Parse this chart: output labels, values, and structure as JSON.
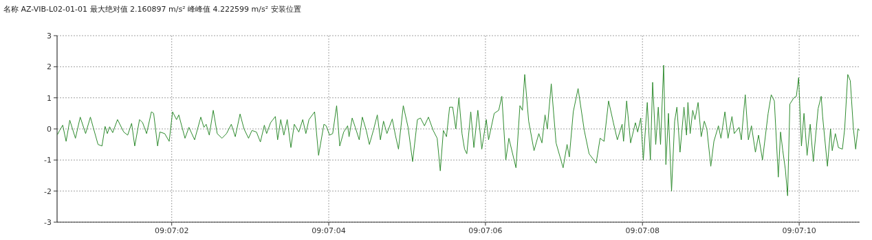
{
  "chart_data": {
    "type": "line",
    "title": "名称 AZ-VIB-L02-01-01 最大绝对值 2.160897 m/s² 峰峰值 4.222599 m/s² 安装位置",
    "x": [
      9.116817,
      9.116825,
      9.116836,
      9.116848,
      9.116861,
      9.116881,
      9.116898,
      9.116917,
      9.116934,
      9.116944,
      9.116961,
      9.116975,
      9.116986,
      9.116994,
      9.117002,
      9.117013,
      9.11703,
      9.117052,
      9.117066,
      9.11708,
      9.117091,
      9.117108,
      9.117119,
      9.117133,
      9.11715,
      9.117158,
      9.117172,
      9.11718,
      9.117197,
      9.117213,
      9.117225,
      9.117239,
      9.117247,
      9.117269,
      9.117283,
      9.117303,
      9.117325,
      9.117336,
      9.117344,
      9.117355,
      9.117369,
      9.117383,
      9.1174,
      9.117416,
      9.117433,
      9.117447,
      9.117464,
      9.117478,
      9.117494,
      9.117506,
      9.117522,
      9.117536,
      9.11755,
      9.117558,
      9.117572,
      9.117589,
      9.117597,
      9.117608,
      9.117619,
      9.117631,
      9.117644,
      9.117656,
      9.117672,
      9.117686,
      9.117697,
      9.117708,
      9.117728,
      9.117742,
      9.117761,
      9.117769,
      9.117781,
      9.117792,
      9.117806,
      9.117817,
      9.117831,
      9.117845,
      9.11785,
      9.117861,
      9.117872,
      9.117886,
      9.117897,
      9.117911,
      9.117922,
      9.117936,
      9.11795,
      9.117961,
      9.117972,
      9.117984,
      9.118003,
      9.118014,
      9.118025,
      9.118042,
      9.118059,
      9.118075,
      9.118092,
      9.118103,
      9.118117,
      9.118131,
      9.118148,
      9.118162,
      9.118173,
      9.118184,
      9.118195,
      9.118206,
      9.118217,
      9.118228,
      9.118239,
      9.11825,
      9.118259,
      9.118267,
      9.118281,
      9.118292,
      9.118306,
      9.11832,
      9.118336,
      9.118344,
      9.118364,
      9.11838,
      9.118391,
      9.118405,
      9.118416,
      9.118441,
      9.118455,
      9.118464,
      9.118472,
      9.118486,
      9.118505,
      9.118522,
      9.118533,
      9.118544,
      9.118552,
      9.118566,
      9.118583,
      9.118597,
      9.118608,
      9.118622,
      9.11863,
      9.118644,
      9.118661,
      9.118683,
      9.1187,
      9.118725,
      9.118739,
      9.118753,
      9.118769,
      9.118786,
      9.1188,
      9.118817,
      9.118822,
      9.118833,
      9.118847,
      9.118864,
      9.118872,
      9.118883,
      9.118892,
      9.118906,
      9.118917,
      9.118925,
      9.118936,
      9.118945,
      9.118953,
      9.118964,
      9.118972,
      9.118981,
      9.118992,
      9.119003,
      9.119011,
      9.119022,
      9.119036,
      9.119045,
      9.11905,
      9.119058,
      9.119067,
      9.119075,
      9.119086,
      9.119097,
      9.119108,
      9.119117,
      9.119131,
      9.119142,
      9.119158,
      9.119167,
      9.119181,
      9.119192,
      9.119206,
      9.119214,
      9.119231,
      9.119239,
      9.119253,
      9.119264,
      9.119275,
      9.119289,
      9.1193,
      9.119314,
      9.119334,
      9.119345,
      9.119356,
      9.11937,
      9.119378,
      9.119386,
      9.119395,
      9.119403,
      9.119411,
      9.119425,
      9.119434,
      9.119442,
      9.119452,
      9.119461,
      9.119472,
      9.119483,
      9.119494,
      9.119511,
      9.119522,
      9.119527,
      9.119544,
      9.119555,
      9.119561,
      9.119572,
      9.119583,
      9.119597,
      9.119605,
      9.119616,
      9.119625,
      9.119636,
      9.119644,
      9.119652,
      9.119658
    ],
    "series": [
      {
        "color": "#2e8b2e",
        "values": [
          -0.19,
          -0.05,
          0.12,
          -0.4,
          0.28,
          -0.3,
          0.38,
          -0.15,
          0.38,
          0.05,
          -0.5,
          -0.55,
          0.08,
          -0.15,
          0.07,
          -0.12,
          0.3,
          -0.1,
          -0.2,
          0.18,
          -0.55,
          0.3,
          0.2,
          -0.15,
          0.55,
          0.5,
          -0.55,
          -0.1,
          -0.15,
          -0.4,
          0.55,
          0.3,
          0.45,
          -0.3,
          0.05,
          -0.35,
          0.38,
          0.05,
          0.15,
          -0.2,
          0.6,
          -0.15,
          -0.3,
          -0.15,
          0.15,
          -0.25,
          0.48,
          0.0,
          -0.3,
          -0.05,
          -0.1,
          -0.42,
          0.12,
          -0.15,
          0.2,
          0.4,
          -0.35,
          0.3,
          -0.2,
          0.3,
          -0.6,
          0.15,
          -0.1,
          0.3,
          -0.15,
          0.3,
          0.55,
          -0.85,
          0.15,
          0.1,
          -0.2,
          -0.15,
          0.75,
          -0.55,
          -0.1,
          0.1,
          -0.25,
          0.35,
          0.05,
          -0.35,
          0.38,
          -0.05,
          -0.5,
          -0.05,
          0.45,
          -0.35,
          0.25,
          -0.15,
          0.32,
          -0.2,
          -0.65,
          0.75,
          0.05,
          -1.05,
          0.3,
          0.35,
          0.1,
          0.38,
          -0.05,
          -0.3,
          -1.35,
          -0.05,
          -0.25,
          0.7,
          0.7,
          0.0,
          1.0,
          -0.15,
          -0.65,
          -0.8,
          0.55,
          -0.6,
          0.6,
          -0.65,
          0.3,
          -0.35,
          0.5,
          0.6,
          1.05,
          -1.0,
          -0.3,
          -1.25,
          0.75,
          0.6,
          1.75,
          0.25,
          -0.7,
          -0.15,
          -0.45,
          0.45,
          0.0,
          1.45,
          -0.45,
          -0.9,
          -1.25,
          -0.5,
          -0.9,
          0.55,
          1.3,
          -0.05,
          -0.8,
          -1.1,
          -0.3,
          -0.4,
          0.9,
          0.2,
          -0.35,
          0.15,
          -0.4,
          0.9,
          -0.45,
          0.2,
          -0.1,
          0.35,
          -1.0,
          0.85,
          -1.0,
          1.5,
          -0.5,
          0.7,
          -0.5,
          2.05,
          -1.15,
          0.5,
          -2.0,
          0.25,
          0.7,
          -0.75,
          0.7,
          -0.2,
          0.85,
          -0.15,
          0.6,
          0.3,
          0.85,
          -0.25,
          0.25,
          0.0,
          -1.2,
          -0.4,
          0.1,
          -0.3,
          0.55,
          -0.3,
          0.4,
          -0.15,
          0.05,
          -0.35,
          1.1,
          -0.35,
          0.1,
          -0.75,
          -0.2,
          -1.0,
          0.5,
          1.1,
          0.9,
          -1.55,
          -0.1,
          -0.7,
          -1.3,
          -2.15,
          0.8,
          1.0,
          1.05,
          1.65,
          -0.55,
          0.5,
          -0.85,
          0.15,
          -1.05,
          0.65,
          1.05,
          0.4,
          -1.2,
          0.0,
          -0.7,
          -0.15,
          -0.6,
          -0.65,
          0.0,
          1.75,
          1.55,
          0.0,
          -0.65,
          0.0,
          -0.05
        ]
      }
    ],
    "xlim": [
      9.116816,
      9.119658
    ],
    "ylim": [
      -3,
      3
    ],
    "xticks": [
      {
        "value": 9.117222,
        "label": "09:07:02"
      },
      {
        "value": 9.117778,
        "label": "09:07:04"
      },
      {
        "value": 9.118333,
        "label": "09:07:06"
      },
      {
        "value": 9.118889,
        "label": "09:07:08"
      },
      {
        "value": 9.119444,
        "label": "09:07:10"
      }
    ],
    "yticks": [
      -3,
      -2,
      -1,
      0,
      1,
      2,
      3
    ],
    "grid": true
  }
}
